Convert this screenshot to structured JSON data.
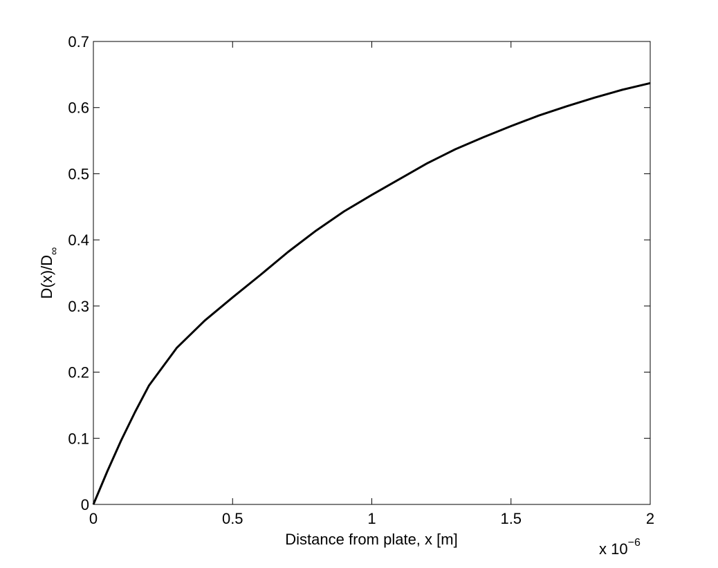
{
  "chart_data": {
    "type": "line",
    "x_label": "Distance from plate, x [m]",
    "y_label": "D(x)/D",
    "y_label_subscript": "∞",
    "x_multiplier": "x 10",
    "x_multiplier_exponent": "−6",
    "xlim": [
      0,
      2
    ],
    "xticks": [
      0,
      0.5,
      1,
      1.5,
      2
    ],
    "ylim": [
      0,
      0.7
    ],
    "yticks": [
      0,
      0.1,
      0.2,
      0.3,
      0.4,
      0.5,
      0.6,
      0.7
    ],
    "x": [
      0,
      0.05,
      0.1,
      0.15,
      0.2,
      0.3,
      0.4,
      0.5,
      0.6,
      0.7,
      0.8,
      0.9,
      1.0,
      1.1,
      1.2,
      1.3,
      1.4,
      1.5,
      1.6,
      1.7,
      1.8,
      1.9,
      2.0
    ],
    "series": [
      {
        "color": "#000000",
        "values": [
          0,
          0.05,
          0.097,
          0.14,
          0.18,
          0.237,
          0.278,
          0.313,
          0.347,
          0.382,
          0.414,
          0.443,
          0.468,
          0.492,
          0.516,
          0.537,
          0.555,
          0.572,
          0.588,
          0.602,
          0.615,
          0.627,
          0.637
        ]
      }
    ]
  }
}
